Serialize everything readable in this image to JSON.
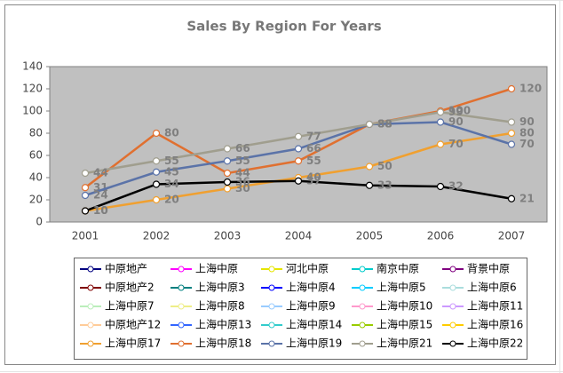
{
  "chart_data": {
    "type": "line",
    "title": "Sales By Region For Years",
    "categories": [
      "2001",
      "2002",
      "2003",
      "2004",
      "2005",
      "2006",
      "2007"
    ],
    "ylim": [
      0,
      140
    ],
    "yticks": [
      0,
      20,
      40,
      60,
      80,
      100,
      120,
      140
    ],
    "series": [
      {
        "name": "中原地产",
        "color": "#000080",
        "values": [
          null,
          null,
          null,
          null,
          null,
          null,
          null
        ]
      },
      {
        "name": "上海中原",
        "color": "#ff00ff",
        "values": [
          null,
          null,
          null,
          null,
          null,
          null,
          null
        ]
      },
      {
        "name": "河北中原",
        "color": "#e6e600",
        "values": [
          null,
          null,
          null,
          null,
          null,
          null,
          null
        ]
      },
      {
        "name": "南京中原",
        "color": "#00cccc",
        "values": [
          null,
          null,
          null,
          null,
          null,
          null,
          null
        ]
      },
      {
        "name": "背景中原",
        "color": "#800080",
        "values": [
          null,
          null,
          null,
          null,
          null,
          null,
          null
        ]
      },
      {
        "name": "中原地产2",
        "color": "#800000",
        "values": [
          null,
          null,
          null,
          null,
          null,
          null,
          null
        ]
      },
      {
        "name": "上海中原3",
        "color": "#008080",
        "values": [
          null,
          null,
          null,
          null,
          null,
          null,
          null
        ]
      },
      {
        "name": "上海中原4",
        "color": "#0000ff",
        "values": [
          null,
          null,
          null,
          null,
          null,
          null,
          null
        ]
      },
      {
        "name": "上海中原5",
        "color": "#00ccff",
        "values": [
          null,
          null,
          null,
          null,
          null,
          null,
          null
        ]
      },
      {
        "name": "上海中原6",
        "color": "#aadddd",
        "values": [
          null,
          null,
          null,
          null,
          null,
          null,
          null
        ]
      },
      {
        "name": "上海中原7",
        "color": "#bbeebb",
        "values": [
          null,
          null,
          null,
          null,
          null,
          null,
          null
        ]
      },
      {
        "name": "上海中原8",
        "color": "#eeee88",
        "values": [
          null,
          null,
          null,
          null,
          null,
          null,
          null
        ]
      },
      {
        "name": "上海中原9",
        "color": "#99ccff",
        "values": [
          null,
          null,
          null,
          null,
          null,
          null,
          null
        ]
      },
      {
        "name": "上海中原10",
        "color": "#ff99cc",
        "values": [
          null,
          null,
          null,
          null,
          null,
          null,
          null
        ]
      },
      {
        "name": "上海中原11",
        "color": "#cc99ff",
        "values": [
          null,
          null,
          null,
          null,
          null,
          null,
          null
        ]
      },
      {
        "name": "中原地产12",
        "color": "#ffcc99",
        "values": [
          null,
          null,
          null,
          null,
          null,
          null,
          null
        ]
      },
      {
        "name": "上海中原13",
        "color": "#3366ff",
        "values": [
          null,
          null,
          null,
          null,
          null,
          null,
          null
        ]
      },
      {
        "name": "上海中原14",
        "color": "#33cccc",
        "values": [
          null,
          null,
          null,
          null,
          null,
          null,
          null
        ]
      },
      {
        "name": "上海中原15",
        "color": "#99cc00",
        "values": [
          null,
          null,
          null,
          null,
          null,
          null,
          null
        ]
      },
      {
        "name": "上海中原16",
        "color": "#ffcc00",
        "values": [
          null,
          null,
          null,
          null,
          null,
          null,
          null
        ]
      },
      {
        "name": "上海中原17",
        "color": "#f0a030",
        "values": [
          10,
          20,
          30,
          40,
          50,
          70,
          80
        ]
      },
      {
        "name": "上海中原18",
        "color": "#e07030",
        "values": [
          31,
          80,
          44,
          55,
          88,
          100,
          120
        ]
      },
      {
        "name": "上海中原19",
        "color": "#5b73a8",
        "values": [
          24,
          45,
          55,
          66,
          88,
          90,
          70
        ]
      },
      {
        "name": "上海中原21",
        "color": "#a09e8e",
        "values": [
          44,
          55,
          66,
          77,
          88,
          99,
          90
        ]
      },
      {
        "name": "上海中原22",
        "color": "#000000",
        "values": [
          10,
          34,
          36,
          37,
          33,
          32,
          21
        ]
      }
    ]
  }
}
